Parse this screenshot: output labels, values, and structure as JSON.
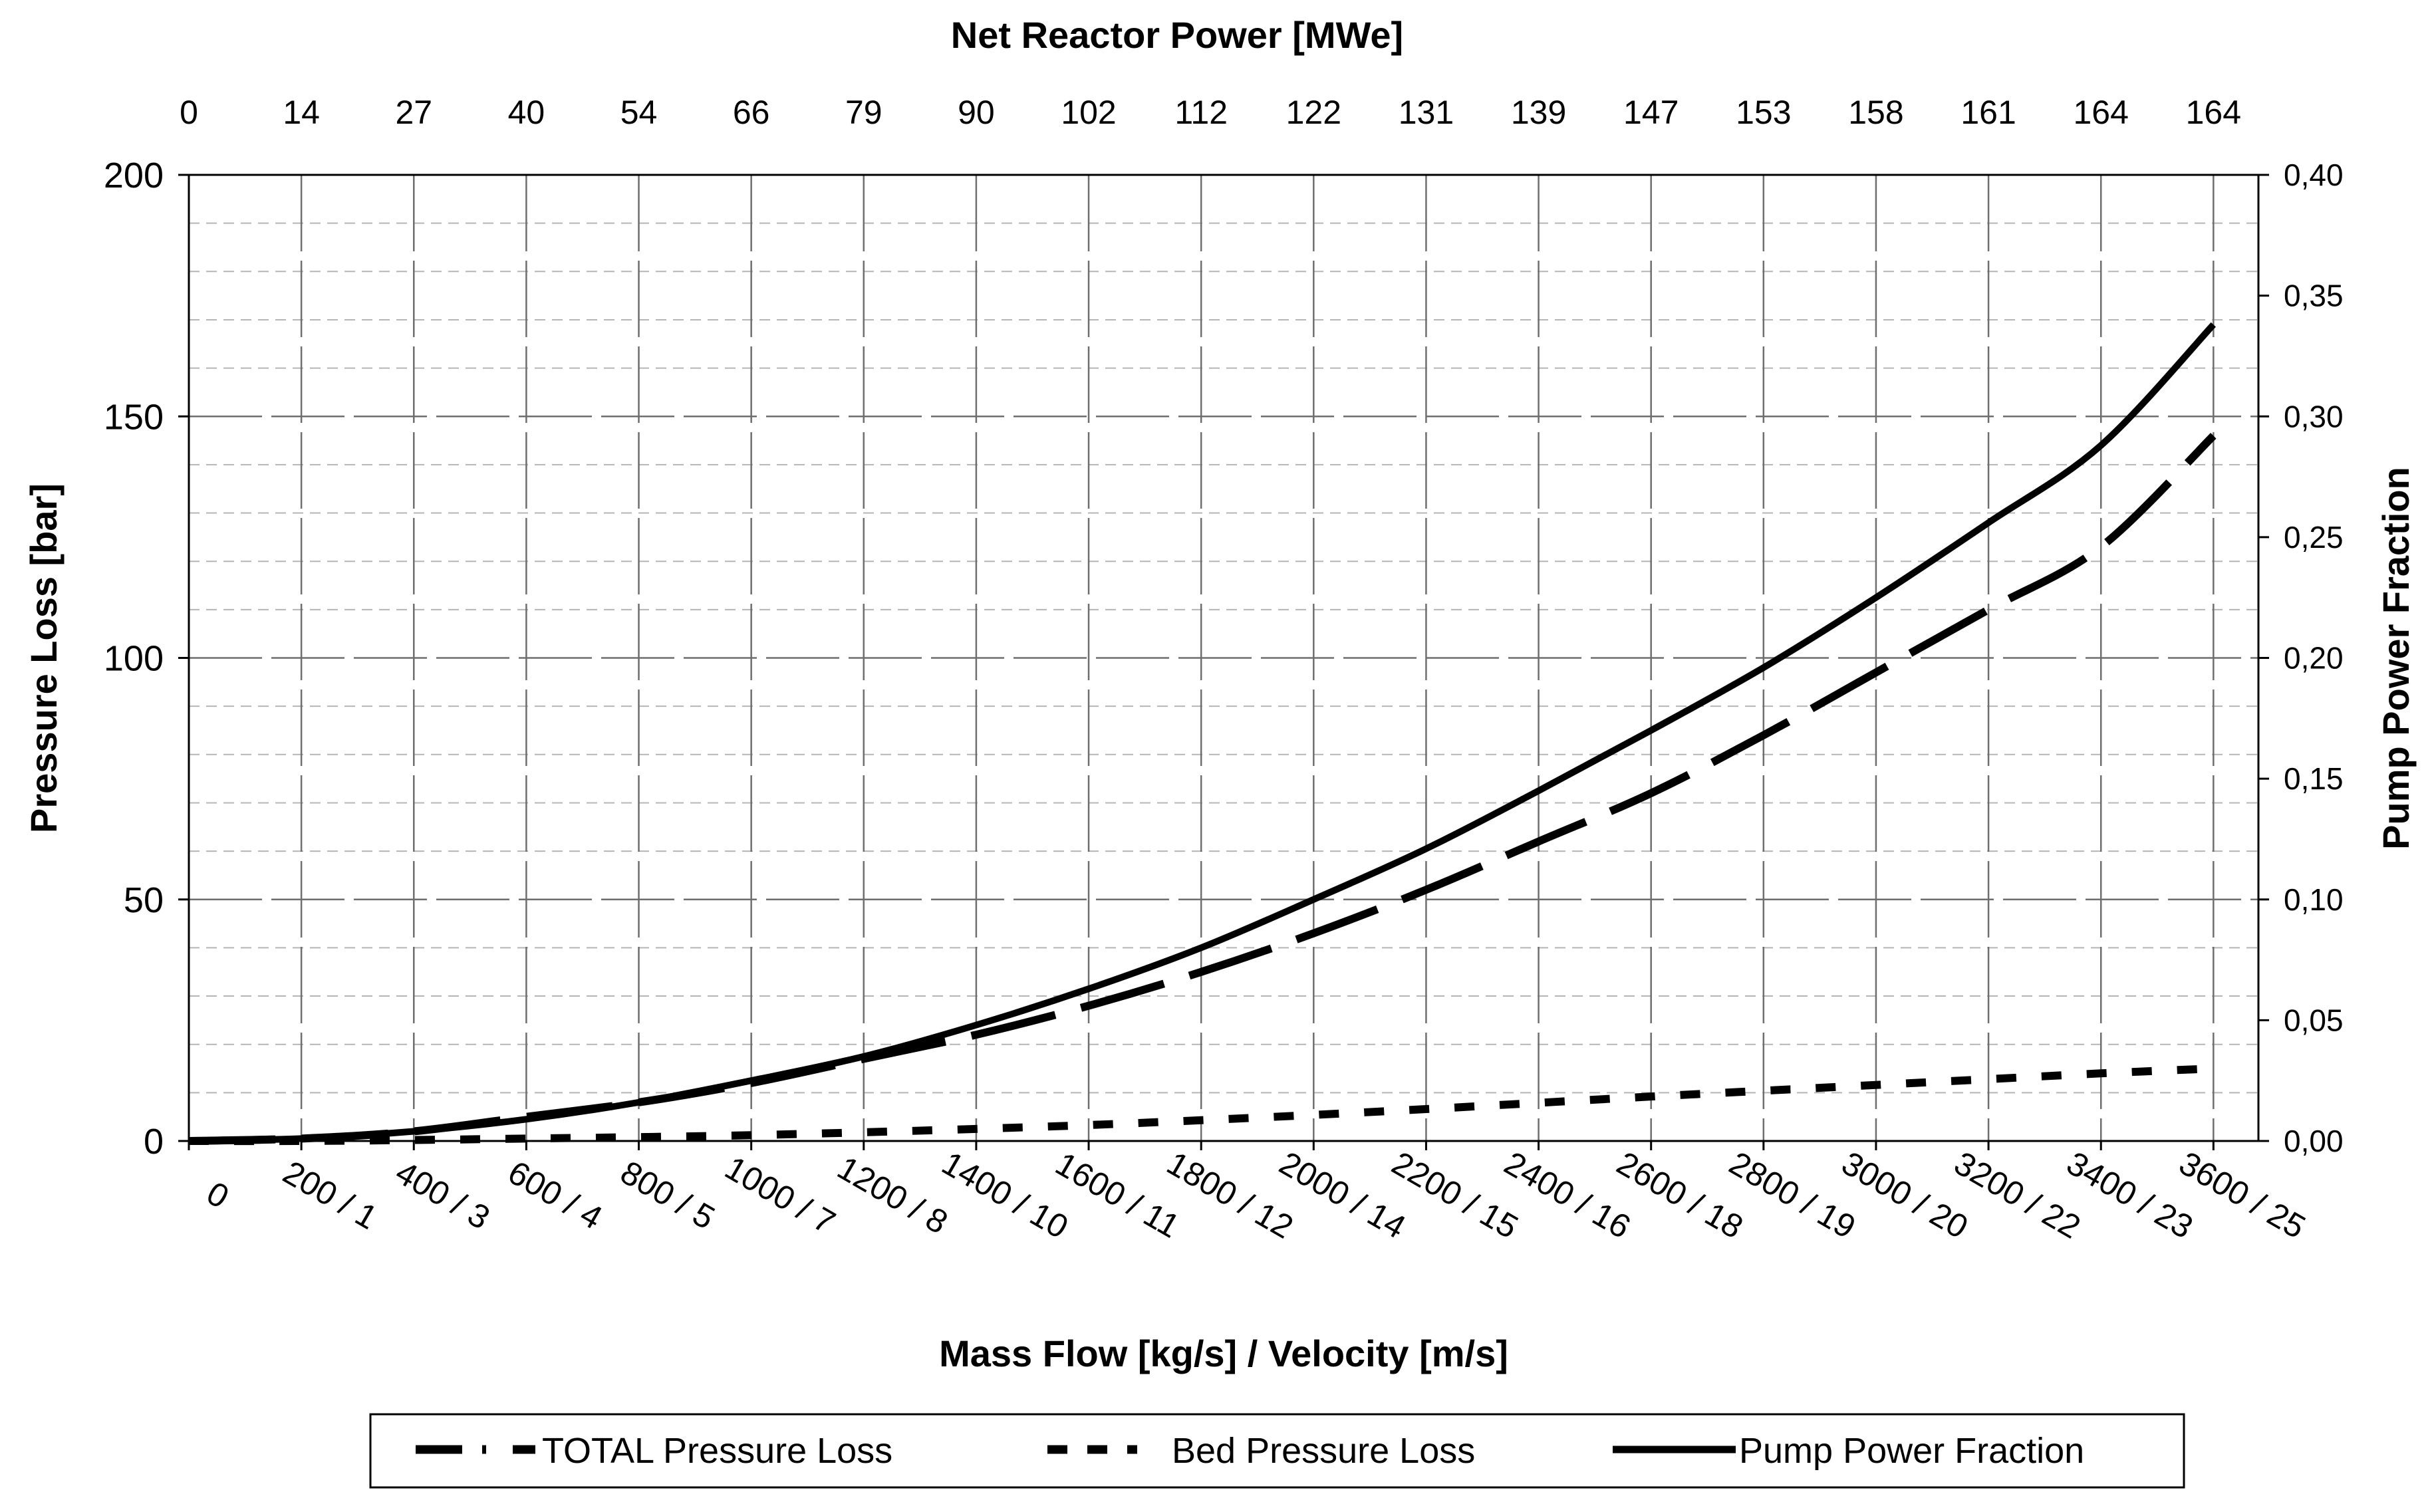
{
  "chart_data": {
    "type": "line",
    "title": "Net Reactor Power [MWe]",
    "xlabel": "Mass Flow [kg/s] / Velocity [m/s]",
    "ylabel": "Pressure Loss [bar]",
    "y2label": "Pump Power Fraction",
    "ylim": [
      0,
      200
    ],
    "y2lim": [
      0,
      0.4
    ],
    "yticks": [
      "0",
      "50",
      "100",
      "150",
      "200"
    ],
    "y2ticks": [
      "0,00",
      "0,05",
      "0,10",
      "0,15",
      "0,20",
      "0,25",
      "0,30",
      "0,35",
      "0,40"
    ],
    "categories": [
      "0",
      "200 / 1",
      "400 / 3",
      "600 / 4",
      "800 / 5",
      "1000 / 7",
      "1200 / 8",
      "1400 / 10",
      "1600 / 11",
      "1800 / 12",
      "2000 / 14",
      "2200 / 15",
      "2400 / 16",
      "2600 / 18",
      "2800 / 19",
      "3000 / 20",
      "3200 / 22",
      "3400 / 23",
      "3600 / 25"
    ],
    "top_categories": [
      "0",
      "14",
      "27",
      "40",
      "54",
      "66",
      "79",
      "90",
      "102",
      "112",
      "122",
      "131",
      "139",
      "147",
      "153",
      "158",
      "161",
      "164",
      "164"
    ],
    "series": [
      {
        "name": "TOTAL Pressure Loss",
        "axis": "left",
        "style": "dashed",
        "values": [
          0,
          0.5,
          2,
          5,
          8,
          12,
          17,
          22,
          28,
          35,
          43,
          52,
          62,
          72,
          84,
          97,
          110,
          123,
          146
        ]
      },
      {
        "name": "Bed Pressure Loss",
        "axis": "left",
        "style": "dotted",
        "values": [
          0,
          0,
          0.2,
          0.5,
          0.8,
          1.2,
          1.8,
          2.5,
          3.3,
          4.3,
          5.4,
          6.6,
          7.9,
          9.2,
          10.4,
          11.6,
          12.8,
          14,
          15
        ]
      },
      {
        "name": "Pump Power Fraction",
        "axis": "right",
        "style": "solid",
        "values": [
          0,
          0.001,
          0.004,
          0.009,
          0.016,
          0.025,
          0.035,
          0.048,
          0.063,
          0.08,
          0.1,
          0.121,
          0.145,
          0.17,
          0.196,
          0.225,
          0.256,
          0.288,
          0.338
        ]
      }
    ],
    "legend": [
      "TOTAL Pressure Loss",
      "Bed Pressure Loss",
      "Pump Power Fraction"
    ],
    "legend_position": "bottom",
    "grid": true
  }
}
